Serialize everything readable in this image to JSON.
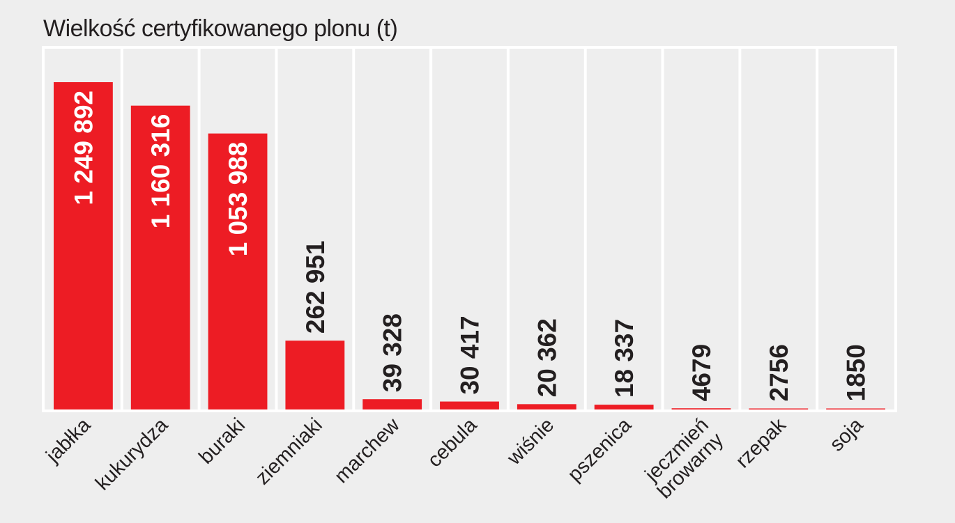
{
  "chart_data": {
    "type": "bar",
    "title": "Wielkość certyfikowanego plonu (t)",
    "xlabel": "",
    "ylabel": "",
    "categories": [
      "jabłka",
      "kukurydza",
      "buraki",
      "ziemniaki",
      "marchew",
      "cebula",
      "wiśnie",
      "pszenica",
      "jeczmień browarny",
      "rzepak",
      "soja"
    ],
    "category_lines": [
      [
        "jabłka"
      ],
      [
        "kukurydza"
      ],
      [
        "buraki"
      ],
      [
        "ziemniaki"
      ],
      [
        "marchew"
      ],
      [
        "cebula"
      ],
      [
        "wiśnie"
      ],
      [
        "pszenica"
      ],
      [
        "jeczmień",
        "browarny"
      ],
      [
        "rzepak"
      ],
      [
        "soja"
      ]
    ],
    "values": [
      1249892,
      1160316,
      1053988,
      262951,
      39328,
      30417,
      20362,
      18337,
      4679,
      2756,
      1850
    ],
    "value_labels": [
      "1 249 892",
      "1 160 316",
      "1 053 988",
      "262 951",
      "39 328",
      "30 417",
      "20 362",
      "18 337",
      "4679",
      "2756",
      "1850"
    ],
    "ylim": [
      0,
      1400000
    ],
    "grid": false,
    "legend": "none",
    "colors": {
      "bar": "#ed1c24",
      "background": "#eeeeee",
      "divider": "#ffffff",
      "label_inside": "#ffffff",
      "label_outside": "#231f20"
    }
  }
}
